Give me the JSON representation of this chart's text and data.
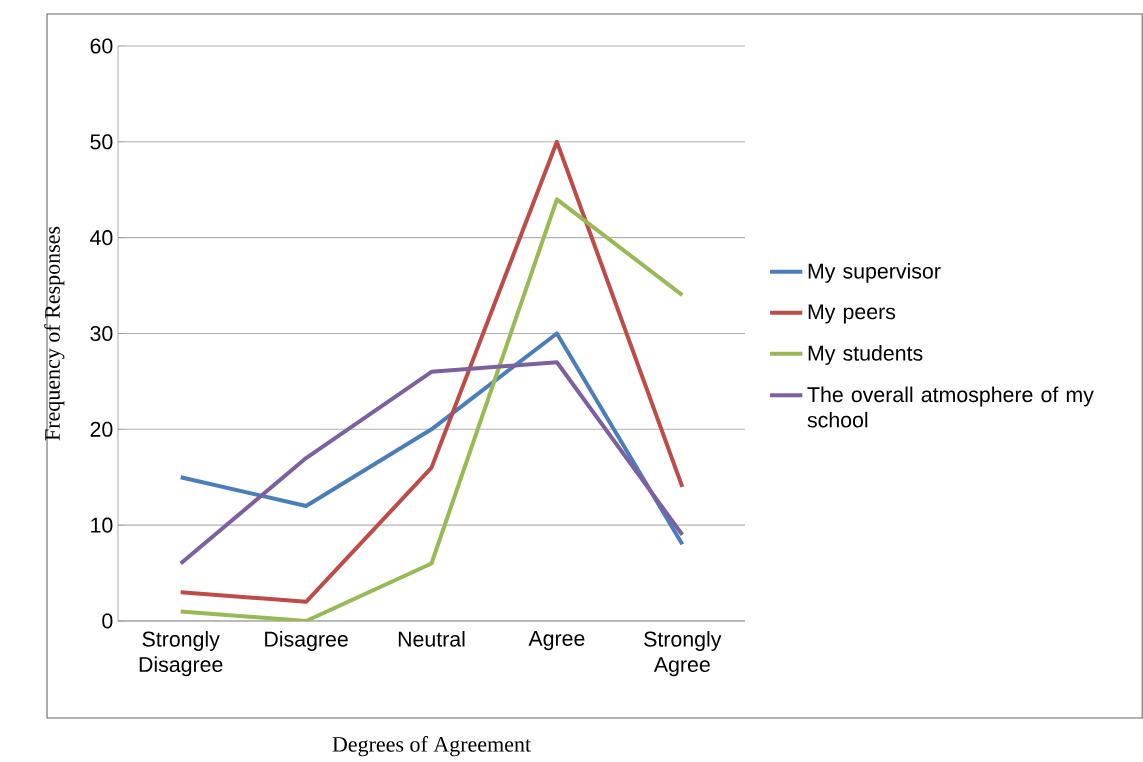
{
  "chart_data": {
    "type": "line",
    "xlabel": "Degrees of Agreement",
    "ylabel": "Frequency of Responses",
    "categories": [
      "Strongly Disagree",
      "Disagree",
      "Neutral",
      "Agree",
      "Strongly Agree"
    ],
    "series": [
      {
        "name": "My supervisor",
        "color": "#4a7ebb",
        "values": [
          15,
          12,
          20,
          30,
          8
        ]
      },
      {
        "name": "My peers",
        "color": "#be4b48",
        "values": [
          3,
          2,
          16,
          50,
          14
        ]
      },
      {
        "name": "My students",
        "color": "#98b954",
        "values": [
          1,
          0,
          6,
          44,
          34
        ]
      },
      {
        "name": "The overall atmosphere of my school",
        "color": "#7d60a0",
        "values": [
          6,
          17,
          26,
          27,
          9
        ]
      }
    ],
    "ylim": [
      0,
      60
    ],
    "yticks": [
      0,
      10,
      20,
      30,
      40,
      50,
      60
    ],
    "grid": "y",
    "legend": "right"
  }
}
